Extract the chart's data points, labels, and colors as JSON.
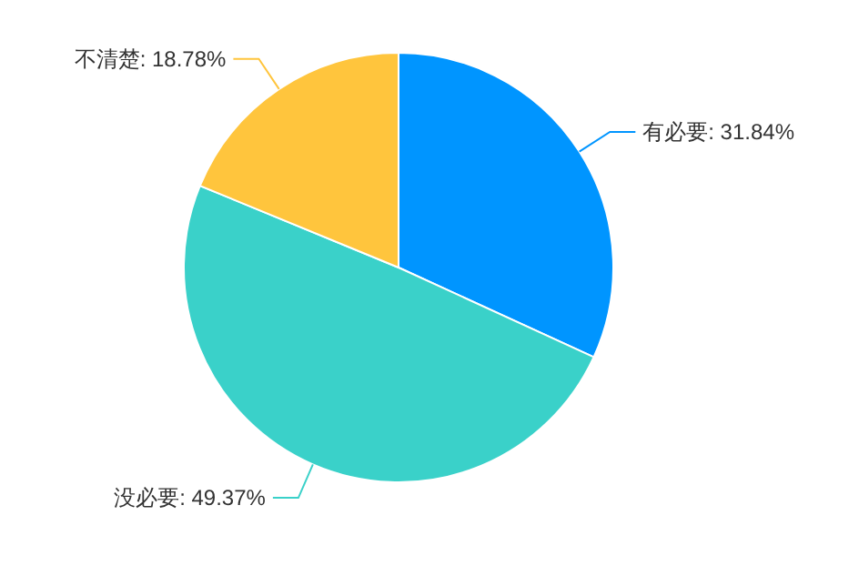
{
  "chart_data": {
    "type": "pie",
    "categories": [
      "有必要",
      "没必要",
      "不清楚"
    ],
    "values": [
      31.84,
      49.37,
      18.78
    ],
    "colors": [
      "#0095ff",
      "#3ad1c9",
      "#ffc53d"
    ],
    "value_labels": [
      "31.84%",
      "49.37%",
      "18.78%"
    ]
  }
}
